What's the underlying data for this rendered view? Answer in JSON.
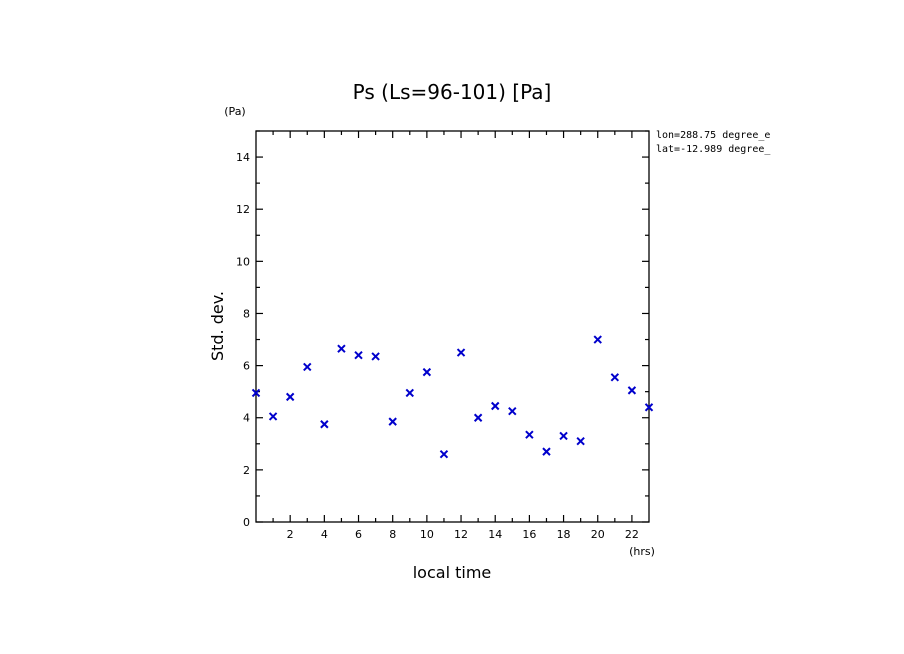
{
  "chart_data": {
    "type": "scatter",
    "title": "Ps (Ls=96-101) [Pa]",
    "xlabel": "local time",
    "ylabel": "Std. dev.",
    "x_unit": "(hrs)",
    "y_unit": "(Pa)",
    "xlim": [
      0,
      23
    ],
    "ylim": [
      0,
      15
    ],
    "x_ticks": [
      2,
      4,
      6,
      8,
      10,
      12,
      14,
      16,
      18,
      20,
      22
    ],
    "y_ticks": [
      0,
      2,
      4,
      6,
      8,
      10,
      12,
      14
    ],
    "annotations": [
      "lon=288.75 degree_e",
      "lat=-12.989 degree_"
    ],
    "marker": "x",
    "marker_color": "#0000cc",
    "grid": false,
    "x": [
      0,
      1,
      2,
      3,
      4,
      5,
      6,
      7,
      8,
      9,
      10,
      11,
      12,
      13,
      14,
      15,
      16,
      17,
      18,
      19,
      20,
      21,
      22,
      23
    ],
    "y": [
      4.95,
      4.05,
      4.8,
      5.95,
      3.75,
      6.65,
      6.4,
      6.35,
      3.85,
      4.95,
      5.75,
      2.6,
      6.5,
      4.0,
      4.45,
      4.25,
      3.35,
      2.7,
      3.3,
      3.1,
      7.0,
      5.55,
      5.05,
      4.4
    ]
  }
}
